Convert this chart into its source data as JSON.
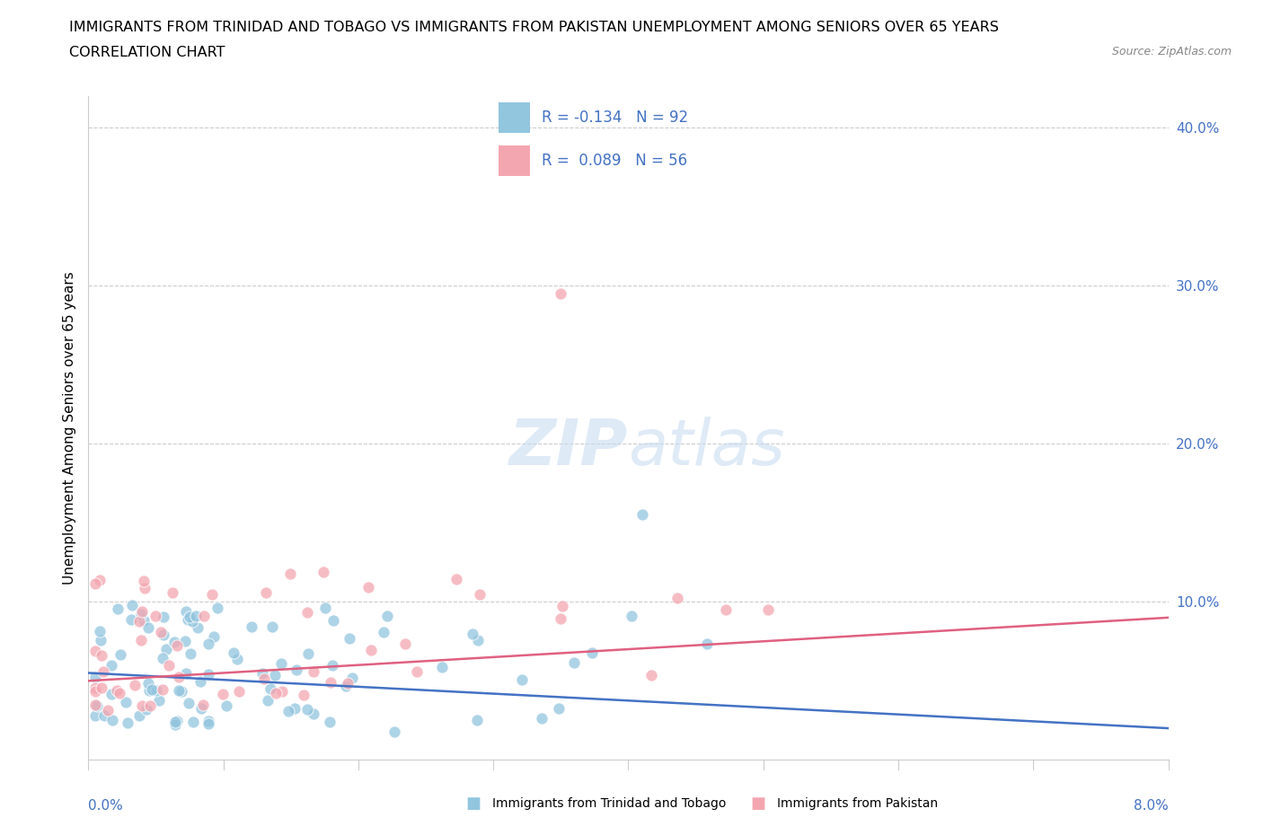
{
  "title_line1": "IMMIGRANTS FROM TRINIDAD AND TOBAGO VS IMMIGRANTS FROM PAKISTAN UNEMPLOYMENT AMONG SENIORS OVER 65 YEARS",
  "title_line2": "CORRELATION CHART",
  "source_text": "Source: ZipAtlas.com",
  "ylabel": "Unemployment Among Seniors over 65 years",
  "color_tt": "#92C5DE",
  "color_pk": "#F4A6B0",
  "line_tt_color": "#4472C4",
  "line_pk_color": "#E06080",
  "legend1_color": "#92C5DE",
  "legend2_color": "#F4A6B0",
  "watermark_color": "#D8E8F0",
  "watermark_text": "ZIPatlas",
  "R_tt": -0.134,
  "N_tt": 92,
  "R_pk": 0.089,
  "N_pk": 56,
  "xlim": [
    0.0,
    0.08
  ],
  "ylim": [
    0.0,
    0.42
  ],
  "ytick_vals": [
    0.0,
    0.1,
    0.2,
    0.3,
    0.4
  ],
  "ytick_labels": [
    "",
    "10.0%",
    "20.0%",
    "30.0%",
    "40.0%"
  ],
  "xtick_label_left": "0.0%",
  "xtick_label_right": "8.0%",
  "label_tt": "Immigrants from Trinidad and Tobago",
  "label_pk": "Immigrants from Pakistan",
  "tick_color": "#4472C4",
  "grid_color": "#CCCCCC",
  "spine_color": "#CCCCCC"
}
